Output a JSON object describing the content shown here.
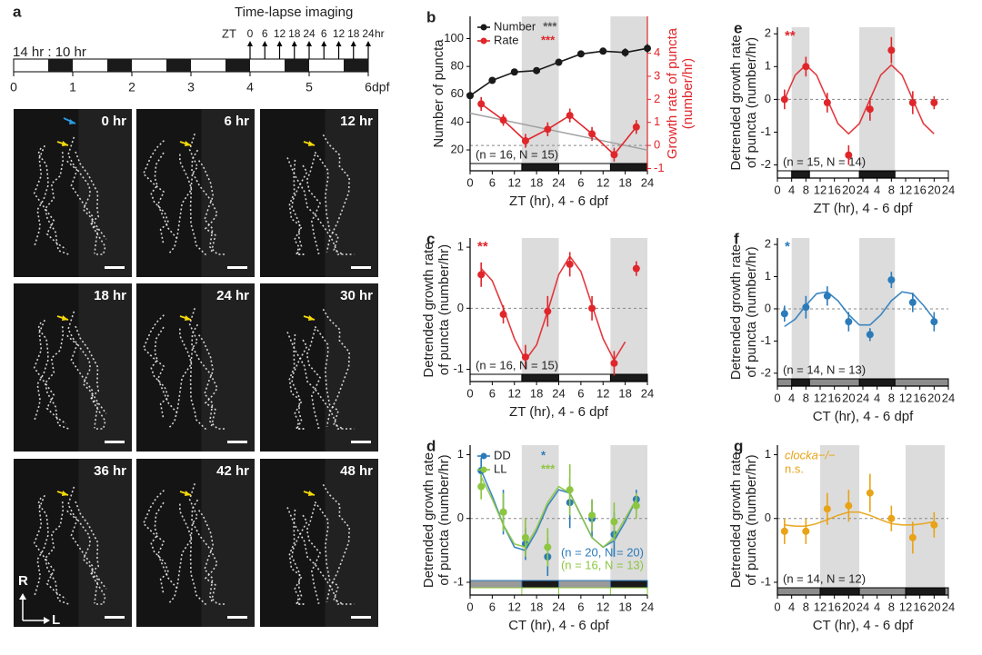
{
  "panel_a": {
    "label": "a",
    "ratio": "14 hr : 10 hr",
    "imaging": "Time-lapse imaging",
    "zt": "ZT",
    "zt_ticks": [
      "0",
      "6",
      "12",
      "18",
      "24",
      "6",
      "12",
      "18",
      "24"
    ],
    "zt_unit": "hr",
    "days": [
      0,
      1,
      2,
      3,
      4,
      5,
      6
    ],
    "day_unit": "dpf",
    "frames": [
      "0 hr",
      "6 hr",
      "12 hr",
      "18 hr",
      "24 hr",
      "30 hr",
      "36 hr",
      "42 hr",
      "48 hr"
    ],
    "axis_r": "R",
    "axis_l": "L"
  },
  "chart_data": [
    {
      "type": "line",
      "label": "b",
      "xlabel": "ZT (hr), 4 - 6 dpf",
      "ylabel": [
        "Number of puncta"
      ],
      "y2label": [
        "Growth rate of puncta",
        "(number/hr)"
      ],
      "y2color": "#e0262b",
      "xlim": [
        0,
        48
      ],
      "xticks": [
        0,
        6,
        12,
        18,
        24,
        {
          "value": 30,
          "label": "6"
        },
        {
          "value": 36,
          "label": "12"
        },
        {
          "value": 42,
          "label": "18"
        },
        {
          "value": 48,
          "label": "24"
        }
      ],
      "ylim": [
        5,
        116
      ],
      "yticks": [
        20,
        40,
        60,
        80,
        100
      ],
      "y2lim": [
        -1.1,
        5.6
      ],
      "y2ticks": [
        -1,
        0,
        1,
        2,
        3,
        4
      ],
      "shaded": [
        [
          14,
          24
        ],
        [
          38,
          48
        ]
      ],
      "light_bars": [
        {
          "day": "#ffffff",
          "night": "#1a1a1a",
          "edge": "#000000"
        }
      ],
      "zero_line": true,
      "sample": "(n = 16, N = 15)",
      "trend": {
        "x": [
          0,
          48
        ],
        "values": [
          1.4,
          -0.2
        ],
        "color": "#a0a0a0"
      },
      "series": [
        {
          "name": "Number",
          "color": "#1a1a1a",
          "significance": "***",
          "significance_color": "#555555",
          "x": [
            0,
            6,
            12,
            18,
            24,
            30,
            36,
            42,
            48
          ],
          "values": [
            59,
            70,
            76,
            77,
            83,
            89,
            91,
            90,
            93
          ],
          "errors": [
            2,
            2,
            2,
            2,
            2,
            2,
            2,
            3,
            3
          ]
        },
        {
          "name": "Rate",
          "color": "#e0262b",
          "significance": "***",
          "significance_color": "#e0262b",
          "axis": "y2",
          "line": true,
          "x": [
            3,
            9,
            15,
            21,
            27,
            33,
            39,
            45
          ],
          "values": [
            1.8,
            1.1,
            0.2,
            0.7,
            1.3,
            0.5,
            -0.4,
            0.8
          ],
          "errors": [
            0.3,
            0.25,
            0.3,
            0.3,
            0.3,
            0.3,
            0.3,
            0.3
          ]
        }
      ]
    },
    {
      "type": "scatter",
      "label": "c",
      "xlabel": "ZT (hr), 4 - 6 dpf",
      "ylabel": [
        "Detrended growth rate",
        "of puncta (number/hr)"
      ],
      "xlim": [
        0,
        48
      ],
      "xticks": [
        0,
        6,
        12,
        18,
        24,
        {
          "value": 30,
          "label": "6"
        },
        {
          "value": 36,
          "label": "12"
        },
        {
          "value": 42,
          "label": "18"
        },
        {
          "value": 48,
          "label": "24"
        }
      ],
      "ylim": [
        -1.2,
        1.15
      ],
      "yticks": [
        -1,
        0,
        1
      ],
      "shaded": [
        [
          14,
          24
        ],
        [
          38,
          48
        ]
      ],
      "light_bars": [
        {
          "day": "#ffffff",
          "night": "#1a1a1a",
          "edge": "#000000"
        }
      ],
      "zero_line": true,
      "sample": "(n = 16, N = 15)",
      "series": [
        {
          "color": "#e0262b",
          "significance": "**",
          "x": [
            3,
            9,
            15,
            21,
            27,
            33,
            39,
            45
          ],
          "values": [
            0.55,
            -0.1,
            -0.8,
            -0.05,
            0.72,
            0.0,
            -0.9,
            0.65
          ],
          "errors": [
            0.2,
            0.15,
            0.2,
            0.25,
            0.2,
            0.2,
            0.2,
            0.12
          ],
          "fit_x": [
            3,
            6,
            9,
            12,
            15,
            18,
            21,
            24,
            27,
            30,
            33,
            36,
            39,
            42
          ],
          "fit_values": [
            0.65,
            0.45,
            0.0,
            -0.5,
            -0.85,
            -0.6,
            -0.05,
            0.55,
            0.85,
            0.6,
            0.05,
            -0.5,
            -0.85,
            -0.55
          ]
        }
      ]
    },
    {
      "type": "scatter",
      "label": "d",
      "xlabel": "CT (hr), 4 - 6 dpf",
      "ylabel": [
        "Detrended growth rate",
        "of puncta (number/hr)"
      ],
      "xlim": [
        0,
        48
      ],
      "xticks": [
        0,
        6,
        12,
        18,
        24,
        {
          "value": 30,
          "label": "6"
        },
        {
          "value": 36,
          "label": "12"
        },
        {
          "value": 42,
          "label": "18"
        },
        {
          "value": 48,
          "label": "24"
        }
      ],
      "ylim": [
        -1.2,
        1.15
      ],
      "yticks": [
        -1,
        0,
        1
      ],
      "shaded": [
        [
          14,
          24
        ],
        [
          38,
          48
        ]
      ],
      "light_bars": [
        {
          "day": "#9a9a9a",
          "night": "#1a1a1a",
          "edge": "#2b7bba"
        },
        {
          "day": "#ffffff",
          "night": "#ffffff",
          "edge": "#8dc63f"
        }
      ],
      "zero_line": true,
      "series": [
        {
          "name": "DD",
          "color": "#2b7bba",
          "significance": "*",
          "significance_color": "#2b7bba",
          "sample": "(n = 20, N = 20)",
          "x": [
            3,
            9,
            15,
            21,
            27,
            33,
            39,
            45
          ],
          "values": [
            0.75,
            0.1,
            -0.4,
            -0.6,
            0.25,
            0.0,
            -0.25,
            0.3
          ],
          "errors": [
            0.2,
            0.35,
            0.25,
            0.3,
            0.4,
            0.3,
            0.35,
            0.15
          ],
          "fit_x": [
            3,
            6,
            9,
            12,
            15,
            18,
            21,
            24,
            27,
            30,
            33,
            36,
            39,
            42,
            45
          ],
          "fit_values": [
            0.75,
            0.35,
            -0.1,
            -0.45,
            -0.5,
            -0.2,
            0.2,
            0.45,
            0.4,
            0.05,
            -0.3,
            -0.45,
            -0.35,
            -0.05,
            0.3
          ]
        },
        {
          "name": "LL",
          "color": "#8dc63f",
          "significance": "***",
          "significance_color": "#8dc63f",
          "sample": "(n = 16, N = 13)",
          "x": [
            3,
            9,
            15,
            21,
            27,
            33,
            39,
            45
          ],
          "values": [
            0.5,
            0.1,
            -0.3,
            -0.45,
            0.45,
            0.05,
            -0.05,
            0.2
          ],
          "errors": [
            0.2,
            0.3,
            0.3,
            0.3,
            0.4,
            0.25,
            0.3,
            0.2
          ],
          "fit_x": [
            3,
            6,
            9,
            12,
            15,
            18,
            21,
            24,
            27,
            30,
            33,
            36,
            39,
            42,
            45
          ],
          "fit_values": [
            0.65,
            0.3,
            -0.1,
            -0.4,
            -0.45,
            -0.15,
            0.25,
            0.5,
            0.4,
            0.05,
            -0.3,
            -0.45,
            -0.3,
            0.0,
            0.3
          ]
        }
      ]
    },
    {
      "type": "scatter",
      "label": "e",
      "xlabel": "ZT (hr), 4 - 6 dpf",
      "ylabel": [
        "Detrended growth rate",
        "of puncta (number/hr)"
      ],
      "xlim": [
        0,
        48
      ],
      "xticks": [
        0,
        4,
        8,
        12,
        16,
        20,
        24,
        {
          "value": 28,
          "label": "4"
        },
        {
          "value": 32,
          "label": "8"
        },
        {
          "value": 36,
          "label": "12"
        },
        {
          "value": 40,
          "label": "16"
        },
        {
          "value": 44,
          "label": "20"
        },
        {
          "value": 48,
          "label": "24"
        }
      ],
      "ylim": [
        -2.4,
        2.2
      ],
      "yticks": [
        -2,
        -1,
        0,
        1,
        2
      ],
      "shaded": [
        [
          4,
          9
        ],
        [
          23,
          33
        ]
      ],
      "light_bars": [
        {
          "day": "#ffffff",
          "night": "#1a1a1a",
          "edge": "#000000"
        }
      ],
      "zero_line": true,
      "sample": "(n = 15, N = 14)",
      "series": [
        {
          "color": "#e0262b",
          "significance": "**",
          "x": [
            2,
            8,
            14,
            20,
            26,
            32,
            38,
            44
          ],
          "values": [
            0.0,
            1.0,
            -0.1,
            -1.7,
            -0.3,
            1.5,
            -0.1,
            -0.1
          ],
          "errors": [
            0.3,
            0.3,
            0.3,
            0.3,
            0.35,
            0.4,
            0.35,
            0.2
          ],
          "fit_x": [
            2,
            5,
            8,
            11,
            14,
            17,
            20,
            23,
            26,
            29,
            32,
            35,
            38,
            41,
            44
          ],
          "fit_values": [
            0.0,
            0.74,
            1.05,
            0.74,
            0.0,
            -0.74,
            -1.05,
            -0.74,
            0.0,
            0.74,
            1.05,
            0.74,
            0.0,
            -0.74,
            -1.05
          ]
        }
      ]
    },
    {
      "type": "scatter",
      "label": "f",
      "xlabel": "CT (hr), 4 - 6 dpf",
      "ylabel": [
        "Detrended growth rate",
        "of puncta (number/hr)"
      ],
      "xlim": [
        0,
        48
      ],
      "xticks": [
        0,
        4,
        8,
        12,
        16,
        20,
        24,
        {
          "value": 28,
          "label": "4"
        },
        {
          "value": 32,
          "label": "8"
        },
        {
          "value": 36,
          "label": "12"
        },
        {
          "value": 40,
          "label": "16"
        },
        {
          "value": 44,
          "label": "20"
        },
        {
          "value": 48,
          "label": "24"
        }
      ],
      "ylim": [
        -2.4,
        2.2
      ],
      "yticks": [
        -2,
        -1,
        0,
        1,
        2
      ],
      "shaded": [
        [
          4,
          9
        ],
        [
          23,
          33
        ]
      ],
      "light_bars": [
        {
          "day": "#8c8c8c",
          "night": "#1a1a1a",
          "edge": "#000000"
        }
      ],
      "zero_line": true,
      "sample": "(n = 14, N = 13)",
      "series": [
        {
          "color": "#2b7bba",
          "significance": "*",
          "x": [
            2,
            8,
            14,
            20,
            26,
            32,
            38,
            44
          ],
          "values": [
            -0.15,
            0.05,
            0.4,
            -0.4,
            -0.8,
            0.9,
            0.2,
            -0.4
          ],
          "errors": [
            0.25,
            0.35,
            0.3,
            0.3,
            0.2,
            0.25,
            0.3,
            0.3
          ],
          "fit_x": [
            2,
            5,
            8,
            11,
            14,
            17,
            20,
            23,
            26,
            29,
            32,
            35,
            38,
            41,
            44
          ],
          "fit_values": [
            -0.55,
            -0.32,
            0.11,
            0.47,
            0.53,
            0.25,
            -0.18,
            -0.5,
            -0.5,
            -0.19,
            0.25,
            0.53,
            0.47,
            0.11,
            -0.32
          ]
        }
      ]
    },
    {
      "type": "scatter",
      "label": "g",
      "xlabel": "CT (hr), 4 - 6 dpf",
      "ylabel": [
        "Detrended growth rate",
        "of puncta (number/hr)"
      ],
      "xlim": [
        0,
        48
      ],
      "xticks": [
        0,
        4,
        8,
        12,
        16,
        20,
        24,
        {
          "value": 28,
          "label": "4"
        },
        {
          "value": 32,
          "label": "8"
        },
        {
          "value": 36,
          "label": "12"
        },
        {
          "value": 40,
          "label": "16"
        },
        {
          "value": 44,
          "label": "20"
        },
        {
          "value": 48,
          "label": "24"
        }
      ],
      "ylim": [
        -1.2,
        1.15
      ],
      "yticks": [
        -1,
        0,
        1
      ],
      "shaded": [
        [
          12,
          23
        ],
        [
          36,
          47
        ]
      ],
      "light_bars": [
        {
          "day": "#8c8c8c",
          "night": "#1a1a1a",
          "edge": "#000000"
        }
      ],
      "zero_line": true,
      "legend_markers": false,
      "sample": "(n = 14, N = 12)",
      "series": [
        {
          "name": "clocka−/−",
          "color": "#e8a317",
          "significance": "n.s.",
          "significance_color": "#e8a317",
          "x": [
            2,
            8,
            14,
            20,
            26,
            32,
            38,
            44
          ],
          "values": [
            -0.2,
            -0.2,
            0.15,
            0.2,
            0.4,
            0.0,
            -0.3,
            -0.1
          ],
          "errors": [
            0.2,
            0.2,
            0.25,
            0.25,
            0.3,
            0.2,
            0.25,
            0.2
          ],
          "fit_x": [
            2,
            5,
            8,
            11,
            14,
            17,
            20,
            23,
            26,
            29,
            32,
            35,
            38,
            41,
            44
          ],
          "fit_values": [
            -0.1,
            -0.12,
            -0.12,
            -0.08,
            -0.02,
            0.05,
            0.1,
            0.1,
            0.05,
            -0.02,
            -0.08,
            -0.1,
            -0.1,
            -0.08,
            -0.05
          ]
        }
      ]
    }
  ]
}
